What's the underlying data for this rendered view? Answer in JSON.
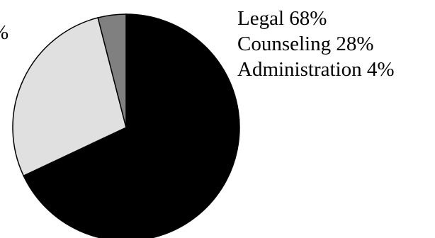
{
  "chart_data": {
    "type": "pie",
    "title": "",
    "slices": [
      {
        "label": "Legal",
        "value": 68,
        "color": "#000000"
      },
      {
        "label": "Counseling",
        "value": 28,
        "color": "#e0e0e0"
      },
      {
        "label": "Administration",
        "value": 4,
        "color": "#808080"
      }
    ],
    "legend_position": "right",
    "legend": {
      "items": [
        {
          "text": "Legal 68%"
        },
        {
          "text": "Counseling 28%"
        },
        {
          "text": "Administration 4%"
        }
      ]
    },
    "clipped_label": "%"
  }
}
